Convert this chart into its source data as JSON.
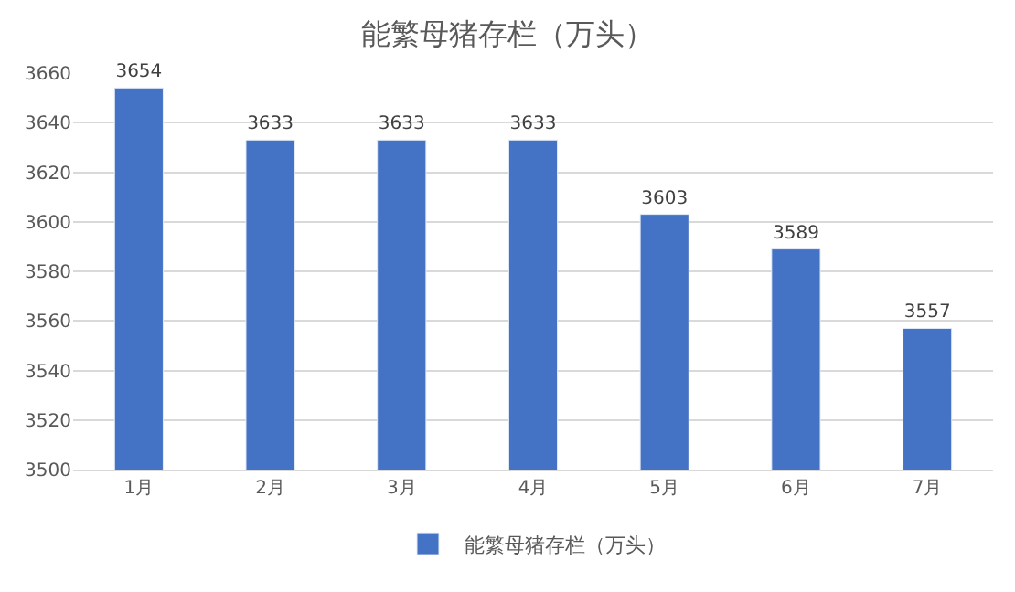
{
  "chart_data": {
    "type": "bar",
    "title": "能繁母猪存栏（万头）",
    "categories": [
      "1月",
      "2月",
      "3月",
      "4月",
      "5月",
      "6月",
      "7月"
    ],
    "series": [
      {
        "name": "能繁母猪存栏（万头）",
        "color": "#4472c4",
        "values": [
          3654,
          3633,
          3633,
          3633,
          3603,
          3589,
          3557
        ]
      }
    ],
    "ylim": [
      3500,
      3660
    ],
    "yticks": [
      3500,
      3520,
      3540,
      3560,
      3580,
      3600,
      3620,
      3640,
      3660
    ],
    "grid": "y",
    "legend": "bottom",
    "data_labels": true
  }
}
